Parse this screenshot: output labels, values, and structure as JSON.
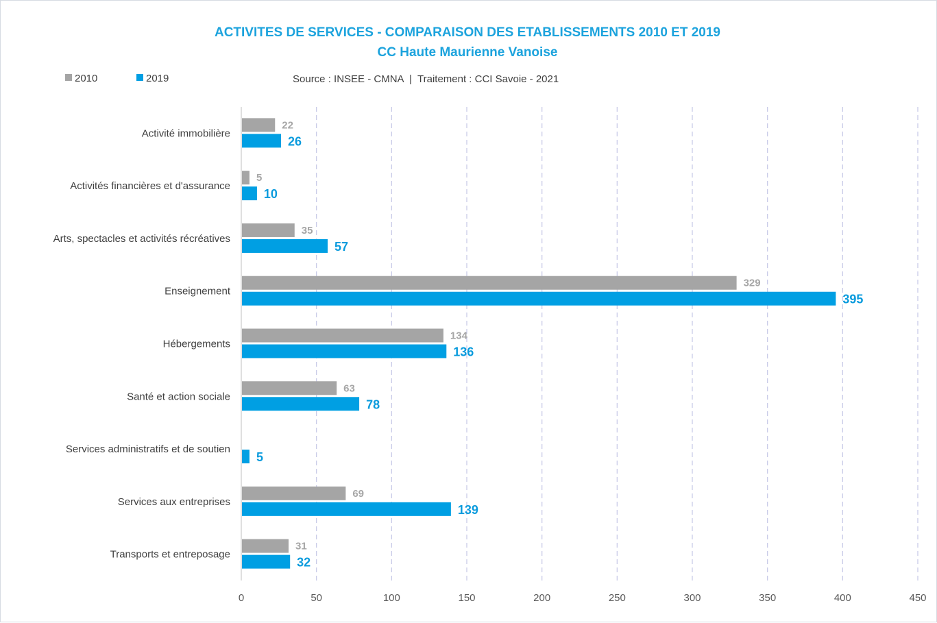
{
  "chart_data": {
    "type": "bar",
    "orientation": "horizontal",
    "title": "ACTIVITES DE SERVICES - COMPARAISON DES ETABLISSEMENTS 2010 ET 2019",
    "subtitle": "CC Haute Maurienne Vanoise",
    "source": "Source : INSEE - CMNA  |  Traitement : CCI Savoie - 2021",
    "categories": [
      "Activité immobilière",
      "Activités financières et d'assurance",
      "Arts, spectacles et activités récréatives",
      "Enseignement",
      "Hébergements",
      "Santé et action sociale",
      "Services administratifs et de soutien",
      "Services aux entreprises",
      "Transports et entreposage"
    ],
    "series": [
      {
        "name": "2010",
        "color": "#a5a5a5",
        "values": [
          22,
          5,
          35,
          329,
          134,
          63,
          null,
          69,
          31
        ]
      },
      {
        "name": "2019",
        "color": "#009fe3",
        "values": [
          26,
          10,
          57,
          395,
          136,
          78,
          5,
          139,
          32
        ]
      }
    ],
    "xlim": [
      0,
      450
    ],
    "xticks": [
      0,
      50,
      100,
      150,
      200,
      250,
      300,
      350,
      400,
      450
    ],
    "grid": "vertical-dashed",
    "legend": "top-left",
    "title_color": "#1ca3dd"
  }
}
